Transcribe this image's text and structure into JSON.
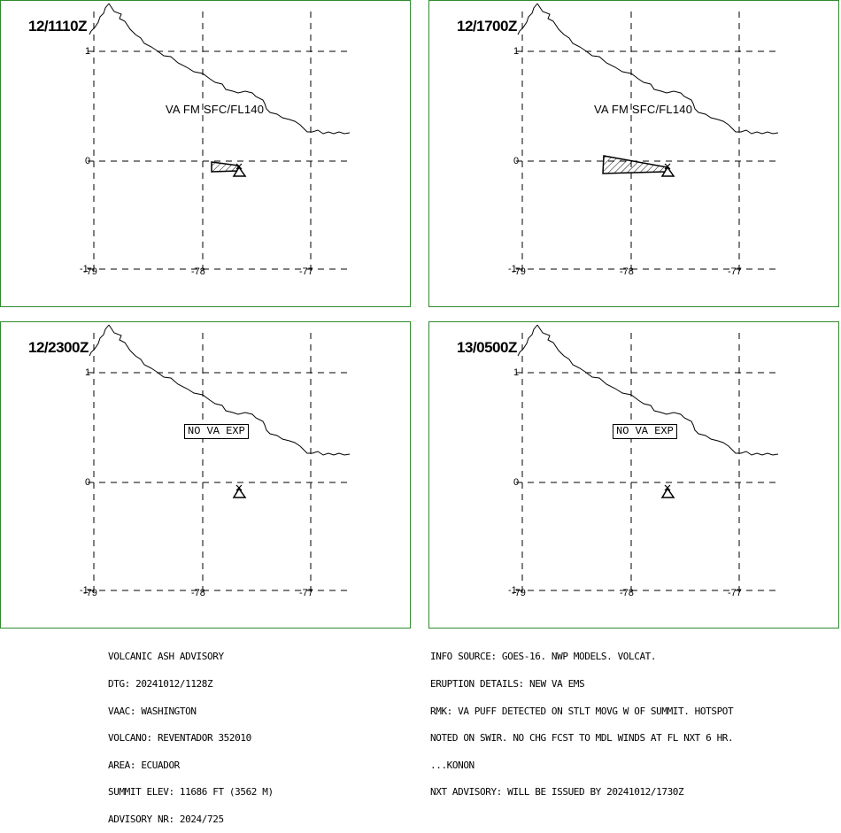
{
  "panels": [
    {
      "time": "12/1110Z",
      "label": "VA FM SFC/FL140",
      "ash": "small"
    },
    {
      "time": "12/1700Z",
      "label": "VA FM SFC/FL140",
      "ash": "large"
    },
    {
      "time": "12/2300Z",
      "label": "NO VA EXP",
      "ash": "none"
    },
    {
      "time": "13/0500Z",
      "label": "NO VA EXP",
      "ash": "none"
    }
  ],
  "axes": {
    "lat_labels": [
      "1",
      "0",
      "-1"
    ],
    "lon_labels": [
      "-79",
      "-78",
      "-77"
    ]
  },
  "advisory": {
    "left_lines": [
      "VOLCANIC ASH ADVISORY",
      "DTG: 20241012/1128Z",
      "VAAC: WASHINGTON",
      "VOLCANO: REVENTADOR 352010",
      "AREA: ECUADOR",
      "SUMMIT ELEV: 11686 FT (3562 M)",
      "ADVISORY NR: 2024/725"
    ],
    "right_lines": [
      "INFO SOURCE: GOES-16. NWP MODELS. VOLCAT.",
      "ERUPTION DETAILS: NEW VA EMS",
      "RMK: VA PUFF DETECTED ON STLT MOVG W OF SUMMIT. HOTSPOT",
      "NOTED ON SWIR. NO CHG FCST TO MDL WINDS AT FL NXT 6 HR.",
      "...KONON",
      "NXT ADVISORY: WILL BE ISSUED BY 20241012/1730Z"
    ]
  },
  "colors": {
    "frame": "#2e8b2e",
    "line": "#000000"
  }
}
